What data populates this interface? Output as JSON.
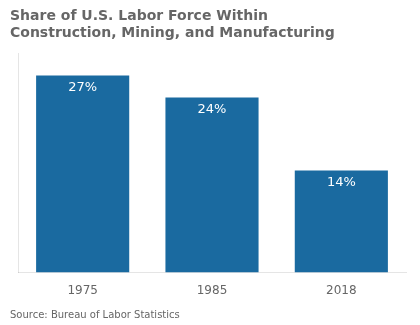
{
  "chart_data": {
    "type": "bar",
    "title": "Share of U.S. Labor Force Within\nConstruction, Mining, and Manufacturing",
    "source": "Source: Bureau of Labor Statistics",
    "categories": [
      "1975",
      "1985",
      "2018"
    ],
    "values": [
      27,
      24,
      14
    ],
    "value_labels": [
      "27%",
      "24%",
      "14%"
    ],
    "data_labels": true,
    "color": "#1a6aa0",
    "ylim": [
      0,
      30
    ],
    "grid": false,
    "tick_labels": "x"
  }
}
